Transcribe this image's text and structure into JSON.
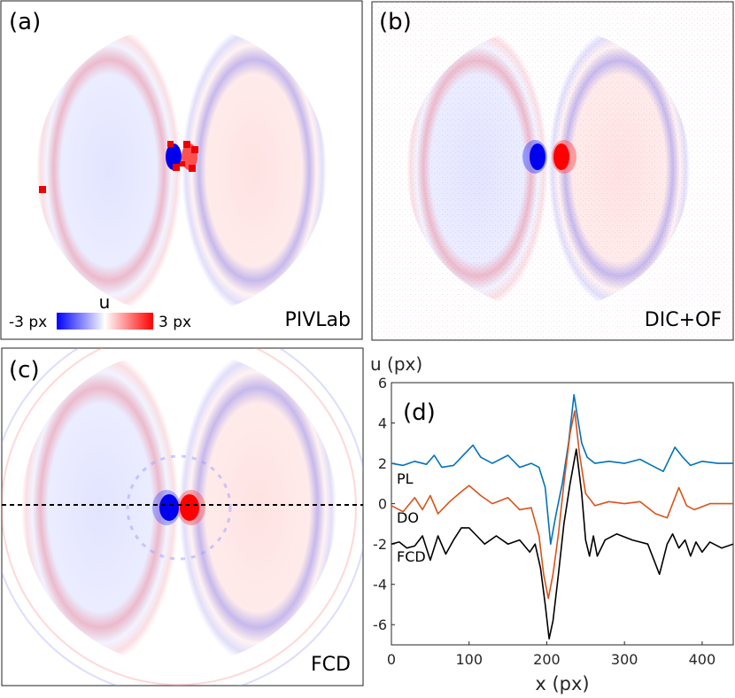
{
  "panels": {
    "a": {
      "tag": "(a)",
      "method": "PIVLab"
    },
    "b": {
      "tag": "(b)",
      "method": "DIC+OF"
    },
    "c": {
      "tag": "(c)",
      "method": "FCD"
    },
    "d": {
      "tag": "(d)"
    }
  },
  "colorbar": {
    "variable": "u",
    "min_label": "-3 px",
    "max_label": "3 px",
    "colors": {
      "negative": "#0000ff",
      "zero": "#ffffff",
      "positive": "#ff0000"
    }
  },
  "chart_data": {
    "type": "line",
    "ylabel": "u (px)",
    "xlabel": "x (px)",
    "xlim": [
      0,
      440
    ],
    "ylim": [
      -7,
      6
    ],
    "xticks": [
      "0",
      "100",
      "200",
      "300",
      "400"
    ],
    "yticks": [
      "-6",
      "-4",
      "-2",
      "0",
      "2",
      "4",
      "6"
    ],
    "series": [
      {
        "name": "PL",
        "color": "#0072bd",
        "x": [
          0,
          15,
          30,
          45,
          55,
          65,
          80,
          95,
          105,
          115,
          130,
          150,
          165,
          180,
          190,
          198,
          205,
          212,
          220,
          228,
          235,
          240,
          245,
          252,
          262,
          280,
          300,
          320,
          335,
          350,
          365,
          375,
          385,
          400,
          420,
          440
        ],
        "y": [
          2.0,
          1.9,
          2.1,
          1.95,
          2.4,
          1.8,
          1.9,
          2.5,
          2.9,
          2.3,
          2.0,
          2.4,
          1.8,
          2.0,
          1.8,
          0.8,
          -2.0,
          -0.5,
          1.0,
          3.0,
          5.4,
          4.2,
          3.0,
          2.3,
          2.0,
          2.1,
          2.0,
          2.2,
          1.9,
          1.6,
          2.8,
          2.3,
          1.9,
          2.1,
          2.0,
          2.0
        ]
      },
      {
        "name": "DO",
        "color": "#d95319",
        "x": [
          0,
          15,
          30,
          40,
          50,
          60,
          75,
          90,
          100,
          115,
          130,
          150,
          165,
          180,
          190,
          196,
          202,
          208,
          215,
          222,
          230,
          236,
          242,
          250,
          262,
          280,
          300,
          320,
          340,
          355,
          370,
          380,
          390,
          410,
          425,
          440
        ],
        "y": [
          -0.1,
          -0.4,
          0.3,
          -0.3,
          0.4,
          -0.5,
          0.1,
          0.6,
          0.9,
          0.4,
          0.0,
          0.3,
          -0.3,
          -0.2,
          -1.6,
          -3.5,
          -4.7,
          -3.5,
          -1.5,
          1.0,
          3.5,
          4.6,
          2.5,
          0.5,
          -0.1,
          0.1,
          0.0,
          0.1,
          -0.5,
          -0.7,
          0.8,
          -0.1,
          -0.3,
          0.0,
          0.0,
          0.0
        ]
      },
      {
        "name": "FCD",
        "color": "#000000",
        "x": [
          0,
          10,
          20,
          30,
          40,
          50,
          60,
          70,
          80,
          90,
          100,
          110,
          120,
          135,
          150,
          165,
          178,
          185,
          192,
          198,
          203,
          208,
          215,
          222,
          230,
          238,
          245,
          250,
          255,
          260,
          265,
          275,
          290,
          310,
          330,
          345,
          355,
          362,
          370,
          378,
          385,
          392,
          400,
          410,
          425,
          440
        ],
        "y": [
          -2.0,
          -1.9,
          -2.2,
          -2.1,
          -1.6,
          -2.8,
          -1.6,
          -2.5,
          -1.8,
          -1.2,
          -1.2,
          -1.6,
          -2.0,
          -1.6,
          -2.0,
          -1.8,
          -2.4,
          -2.0,
          -3.2,
          -5.0,
          -6.7,
          -5.8,
          -3.5,
          -1.0,
          1.0,
          2.7,
          0.5,
          -1.8,
          -2.6,
          -1.6,
          -2.6,
          -1.8,
          -1.5,
          -1.8,
          -2.0,
          -3.5,
          -2.0,
          -1.5,
          -2.2,
          -1.8,
          -2.6,
          -1.9,
          -2.4,
          -1.9,
          -2.2,
          -2.0
        ]
      }
    ]
  }
}
